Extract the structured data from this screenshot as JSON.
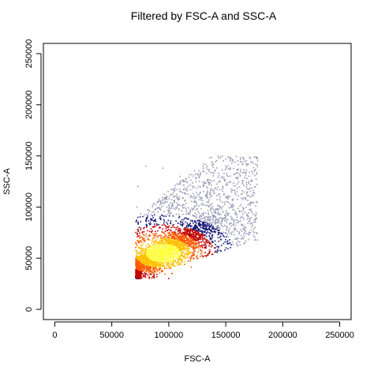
{
  "chart_data": {
    "type": "scatter",
    "title": "Filtered by FSC-A and SSC-A",
    "xlabel": "FSC-A",
    "ylabel": "SSC-A",
    "xlim": [
      -10000,
      260000
    ],
    "ylim": [
      -10000,
      260000
    ],
    "xticks": [
      0,
      50000,
      100000,
      150000,
      200000,
      250000
    ],
    "xtick_labels": [
      "0",
      "50000",
      "100000",
      "150000",
      "200000",
      "250000"
    ],
    "yticks": [
      0,
      50000,
      100000,
      150000,
      200000,
      250000
    ],
    "ytick_labels": [
      "0",
      "50000",
      "100000",
      "150000",
      "200000",
      "250000"
    ],
    "grid": false,
    "legend": "none",
    "color_scale": "density",
    "density_colors": [
      "#9a9ab8",
      "#1a1a7a",
      "#c00000",
      "#ff5a00",
      "#ffc000",
      "#ffff40"
    ],
    "density_core": {
      "x_center": 95000,
      "y_center": 55000,
      "x_spread": 15000,
      "y_spread": 9000
    },
    "points": [
      [
        72000,
        32000
      ],
      [
        75000,
        36000
      ],
      [
        78000,
        40000
      ],
      [
        80000,
        44000
      ],
      [
        82000,
        47000
      ],
      [
        85000,
        50000
      ],
      [
        88000,
        52000
      ],
      [
        90000,
        54000
      ],
      [
        92000,
        55000
      ],
      [
        95000,
        56000
      ],
      [
        98000,
        58000
      ],
      [
        100000,
        60000
      ],
      [
        103000,
        62000
      ],
      [
        106000,
        64000
      ],
      [
        110000,
        67000
      ],
      [
        114000,
        70000
      ],
      [
        118000,
        74000
      ],
      [
        122000,
        78000
      ],
      [
        127000,
        82000
      ],
      [
        132000,
        88000
      ],
      [
        138000,
        94000
      ],
      [
        145000,
        100000
      ],
      [
        152000,
        108000
      ],
      [
        160000,
        115000
      ],
      [
        170000,
        125000
      ],
      [
        175000,
        135000
      ],
      [
        178000,
        145000
      ],
      [
        165000,
        148000
      ],
      [
        150000,
        140000
      ],
      [
        130000,
        135000
      ],
      [
        110000,
        130000
      ],
      [
        95000,
        138000
      ],
      [
        80000,
        140000
      ],
      [
        73000,
        120000
      ],
      [
        72000,
        100000
      ],
      [
        74000,
        80000
      ],
      [
        76000,
        60000
      ],
      [
        120000,
        50000
      ],
      [
        140000,
        60000
      ],
      [
        160000,
        90000
      ]
    ]
  }
}
